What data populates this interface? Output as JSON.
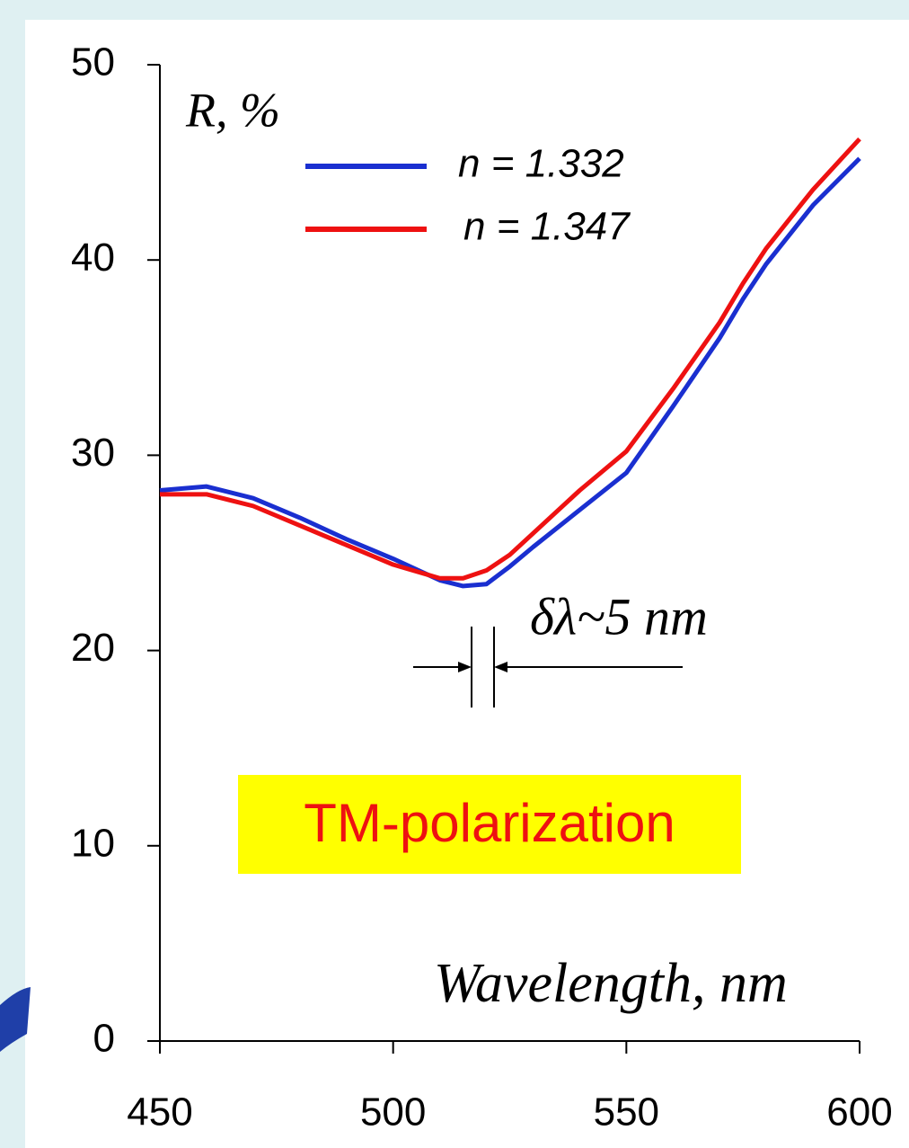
{
  "chart_data": {
    "type": "line",
    "y_label": "R, %",
    "x_label": "Wavelength, nm",
    "annotation": "δλ~5 nm",
    "polarization_label": "TM-polarization",
    "x": [
      450,
      460,
      470,
      480,
      490,
      500,
      510,
      515,
      520,
      525,
      530,
      540,
      550,
      560,
      570,
      575,
      580,
      590,
      600
    ],
    "series": [
      {
        "name": "n = 1.332",
        "color": "#1a2fd0",
        "values": [
          28.2,
          28.4,
          27.8,
          26.8,
          25.7,
          24.7,
          23.6,
          23.3,
          23.4,
          24.3,
          25.3,
          27.2,
          29.1,
          32.5,
          36.0,
          38.0,
          39.8,
          42.8,
          45.2
        ]
      },
      {
        "name": "n = 1.347",
        "color": "#ee1111",
        "values": [
          28.0,
          28.0,
          27.4,
          26.4,
          25.4,
          24.4,
          23.7,
          23.7,
          24.1,
          24.9,
          26.0,
          28.2,
          30.2,
          33.4,
          36.8,
          38.8,
          40.6,
          43.6,
          46.2
        ]
      }
    ],
    "xlim": [
      450,
      600
    ],
    "xticks": [
      450,
      500,
      550,
      600
    ],
    "ylim": [
      0,
      50
    ],
    "yticks": [
      0,
      10,
      20,
      30,
      40,
      50
    ],
    "grid": false
  }
}
